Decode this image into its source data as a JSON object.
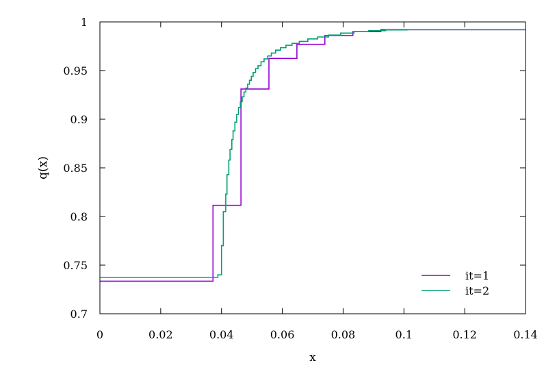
{
  "chart_data": {
    "type": "line",
    "step": true,
    "title": "",
    "xlabel": "x",
    "ylabel": "q(x)",
    "xlim": [
      0,
      0.14
    ],
    "ylim": [
      0.7,
      1.0
    ],
    "x_ticks": [
      0,
      0.02,
      0.04,
      0.06,
      0.08,
      0.1,
      0.12,
      0.14
    ],
    "x_tick_labels": [
      "0",
      "0.02",
      "0.04",
      "0.06",
      "0.08",
      "0.1",
      "0.12",
      "0.14"
    ],
    "y_ticks": [
      0.7,
      0.75,
      0.8,
      0.85,
      0.9,
      0.95,
      1.0
    ],
    "y_tick_labels": [
      "0.7",
      "0.75",
      "0.8",
      "0.85",
      "0.9",
      "0.95",
      "1"
    ],
    "grid": false,
    "legend_position": "bottom-right",
    "series": [
      {
        "name": "it=1",
        "color": "#9400d3",
        "x": [
          0,
          0.0372,
          0.0464,
          0.0556,
          0.0648,
          0.074,
          0.0832,
          0.0924,
          0.14
        ],
        "y": [
          0.7335,
          0.8115,
          0.931,
          0.9625,
          0.977,
          0.986,
          0.99,
          0.992,
          0.992
        ]
      },
      {
        "name": "it=2",
        "color": "#009e73",
        "x": [
          0,
          0.0388,
          0.04,
          0.0406,
          0.0414,
          0.0418,
          0.0424,
          0.0428,
          0.0434,
          0.0438,
          0.0444,
          0.045,
          0.0456,
          0.0462,
          0.0468,
          0.0474,
          0.048,
          0.0486,
          0.0492,
          0.0498,
          0.0504,
          0.0512,
          0.052,
          0.053,
          0.054,
          0.0552,
          0.0564,
          0.0578,
          0.0594,
          0.0612,
          0.0632,
          0.0656,
          0.0684,
          0.0716,
          0.0752,
          0.0792,
          0.0836,
          0.0884,
          0.094,
          0.101,
          0.14
        ],
        "y": [
          0.7375,
          0.74,
          0.77,
          0.805,
          0.823,
          0.843,
          0.858,
          0.869,
          0.879,
          0.888,
          0.897,
          0.905,
          0.912,
          0.918,
          0.923,
          0.928,
          0.932,
          0.936,
          0.94,
          0.944,
          0.948,
          0.952,
          0.955,
          0.959,
          0.962,
          0.965,
          0.968,
          0.971,
          0.9735,
          0.976,
          0.978,
          0.98,
          0.9825,
          0.9845,
          0.9865,
          0.9885,
          0.99,
          0.991,
          0.9918,
          0.992,
          0.992
        ]
      }
    ]
  }
}
